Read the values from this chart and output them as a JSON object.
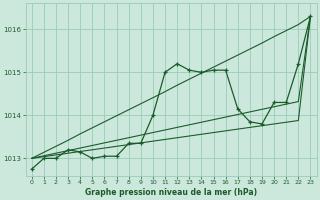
{
  "title": "Graphe pression niveau de la mer (hPa)",
  "background_color": "#cce8dc",
  "grid_color": "#99ccb8",
  "line_color": "#1a5c2a",
  "ylim": [
    1012.6,
    1016.6
  ],
  "yticks": [
    1013,
    1014,
    1015,
    1016
  ],
  "xlim": [
    -0.5,
    23.5
  ],
  "x_labels": [
    "0",
    "1",
    "2",
    "3",
    "4",
    "5",
    "6",
    "7",
    "8",
    "9",
    "10",
    "11",
    "12",
    "13",
    "14",
    "15",
    "16",
    "17",
    "18",
    "19",
    "20",
    "21",
    "22",
    "23"
  ],
  "y_main": [
    1012.75,
    1013.0,
    1013.0,
    1013.2,
    1013.15,
    1013.0,
    1013.05,
    1013.05,
    1013.35,
    1013.35,
    1014.0,
    1015.0,
    1015.2,
    1015.05,
    1015.0,
    1015.05,
    1015.05,
    1014.15,
    1013.85,
    1013.8,
    1014.3,
    1014.3,
    1015.2,
    1016.3
  ],
  "y_diag_high": [
    1013.0,
    1013.14,
    1013.28,
    1013.42,
    1013.57,
    1013.71,
    1013.85,
    1013.99,
    1014.13,
    1014.27,
    1014.41,
    1014.55,
    1014.7,
    1014.84,
    1014.98,
    1015.12,
    1015.26,
    1015.4,
    1015.54,
    1015.68,
    1015.83,
    1015.97,
    1016.11,
    1016.3
  ],
  "y_diag_mid": [
    1013.0,
    1013.06,
    1013.12,
    1013.18,
    1013.24,
    1013.3,
    1013.36,
    1013.42,
    1013.48,
    1013.54,
    1013.6,
    1013.66,
    1013.72,
    1013.78,
    1013.84,
    1013.9,
    1013.96,
    1014.02,
    1014.08,
    1014.14,
    1014.2,
    1014.26,
    1014.32,
    1016.3
  ],
  "y_diag_low": [
    1013.0,
    1013.04,
    1013.08,
    1013.12,
    1013.16,
    1013.2,
    1013.24,
    1013.28,
    1013.32,
    1013.36,
    1013.4,
    1013.44,
    1013.48,
    1013.52,
    1013.56,
    1013.6,
    1013.64,
    1013.68,
    1013.72,
    1013.76,
    1013.8,
    1013.84,
    1013.88,
    1016.3
  ]
}
